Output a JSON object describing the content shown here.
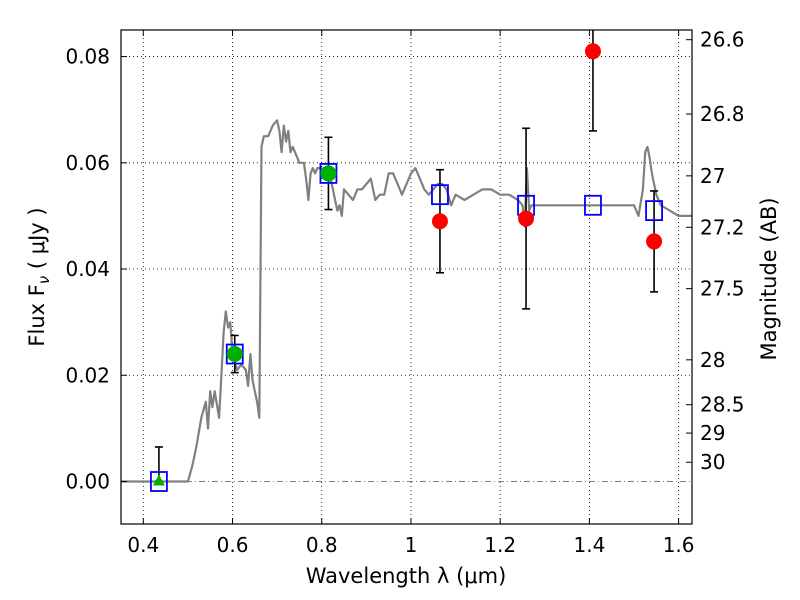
{
  "chart_data": {
    "type": "scatter",
    "title": "",
    "xlabel": "Wavelength  λ (μm)",
    "ylabel": "Flux  F",
    "ylabel_subscript": "ν",
    "ylabel_unit": " ( μJy )",
    "y2label": "Magnitude (AB)",
    "xlim": [
      0.35,
      1.63
    ],
    "ylim": [
      -0.008,
      0.085
    ],
    "x_ticks": [
      0.4,
      0.6,
      0.8,
      1,
      1.2,
      1.4,
      1.6
    ],
    "x_tick_labels": [
      "0.4",
      "0.6",
      "0.8",
      "1",
      "1.2",
      "1.4",
      "1.6"
    ],
    "y_ticks": [
      0.0,
      0.02,
      0.04,
      0.06,
      0.08
    ],
    "y_tick_labels": [
      "0.00",
      "0.02",
      "0.04",
      "0.06",
      "0.08"
    ],
    "y2_ticks": [
      26.6,
      26.8,
      27,
      27.2,
      27.5,
      28,
      28.5,
      29,
      30
    ],
    "y2_tick_labels": [
      "26.6",
      "26.8",
      "27",
      "27.2",
      "27.5",
      "28",
      "28.5",
      "29",
      "30"
    ],
    "grid": true,
    "model_spectrum": {
      "color": "#808080",
      "x": [
        0.35,
        0.4,
        0.45,
        0.48,
        0.5,
        0.51,
        0.52,
        0.53,
        0.54,
        0.545,
        0.55,
        0.555,
        0.56,
        0.57,
        0.575,
        0.58,
        0.585,
        0.59,
        0.595,
        0.6,
        0.61,
        0.62,
        0.63,
        0.635,
        0.64,
        0.645,
        0.65,
        0.655,
        0.66,
        0.665,
        0.67,
        0.675,
        0.68,
        0.69,
        0.7,
        0.705,
        0.71,
        0.715,
        0.72,
        0.725,
        0.73,
        0.735,
        0.74,
        0.75,
        0.76,
        0.765,
        0.77,
        0.775,
        0.78,
        0.785,
        0.79,
        0.8,
        0.81,
        0.82,
        0.83,
        0.835,
        0.84,
        0.845,
        0.85,
        0.86,
        0.87,
        0.88,
        0.89,
        0.9,
        0.91,
        0.92,
        0.93,
        0.94,
        0.95,
        0.96,
        0.97,
        0.98,
        0.99,
        1.0,
        1.01,
        1.02,
        1.03,
        1.04,
        1.05,
        1.06,
        1.07,
        1.08,
        1.09,
        1.1,
        1.12,
        1.14,
        1.16,
        1.18,
        1.2,
        1.22,
        1.24,
        1.25,
        1.255,
        1.26,
        1.265,
        1.27,
        1.28,
        1.3,
        1.32,
        1.34,
        1.36,
        1.38,
        1.4,
        1.42,
        1.44,
        1.46,
        1.48,
        1.5,
        1.51,
        1.52,
        1.525,
        1.53,
        1.535,
        1.54,
        1.55,
        1.56,
        1.58,
        1.6,
        1.62,
        1.63
      ],
      "y": [
        0.0,
        0.0,
        0.0,
        0.0,
        0.0,
        0.003,
        0.007,
        0.012,
        0.015,
        0.01,
        0.017,
        0.014,
        0.017,
        0.012,
        0.02,
        0.028,
        0.032,
        0.029,
        0.03,
        0.024,
        0.021,
        0.022,
        0.021,
        0.018,
        0.024,
        0.019,
        0.017,
        0.015,
        0.012,
        0.063,
        0.065,
        0.065,
        0.065,
        0.067,
        0.068,
        0.066,
        0.062,
        0.067,
        0.064,
        0.066,
        0.062,
        0.063,
        0.062,
        0.06,
        0.06,
        0.057,
        0.053,
        0.058,
        0.059,
        0.058,
        0.059,
        0.059,
        0.058,
        0.057,
        0.053,
        0.051,
        0.052,
        0.05,
        0.055,
        0.054,
        0.053,
        0.055,
        0.055,
        0.056,
        0.057,
        0.053,
        0.054,
        0.054,
        0.058,
        0.058,
        0.056,
        0.054,
        0.056,
        0.058,
        0.059,
        0.057,
        0.055,
        0.054,
        0.055,
        0.056,
        0.056,
        0.055,
        0.052,
        0.054,
        0.053,
        0.054,
        0.055,
        0.055,
        0.054,
        0.054,
        0.053,
        0.052,
        0.048,
        0.059,
        0.051,
        0.052,
        0.052,
        0.052,
        0.052,
        0.052,
        0.052,
        0.052,
        0.052,
        0.052,
        0.052,
        0.052,
        0.052,
        0.052,
        0.05,
        0.055,
        0.062,
        0.063,
        0.061,
        0.058,
        0.054,
        0.052,
        0.051,
        0.05,
        0.05,
        0.05
      ]
    },
    "series": [
      {
        "marker": "square",
        "color": "#0000ff",
        "x": [
          0.435,
          0.605,
          0.815,
          1.065,
          1.258,
          1.408,
          1.545
        ],
        "y": [
          0.0,
          0.024,
          0.058,
          0.054,
          0.052,
          0.052,
          0.051
        ]
      },
      {
        "marker": "circle",
        "color": "#00b000",
        "x": [
          0.605,
          0.815
        ],
        "y": [
          0.024,
          0.058
        ],
        "yerr": [
          0.0035,
          0.0068
        ]
      },
      {
        "marker": "triangle",
        "color": "#00b000",
        "x": [
          0.435
        ],
        "y": [
          0.0
        ],
        "yerr_top": [
          0.0065
        ]
      },
      {
        "marker": "circle",
        "color": "#ff0000",
        "x": [
          1.065,
          1.258,
          1.408,
          1.545
        ],
        "y": [
          0.049,
          0.0495,
          0.081,
          0.0452
        ],
        "yerr": [
          0.0097,
          0.017,
          0.015,
          0.0095
        ]
      }
    ]
  }
}
